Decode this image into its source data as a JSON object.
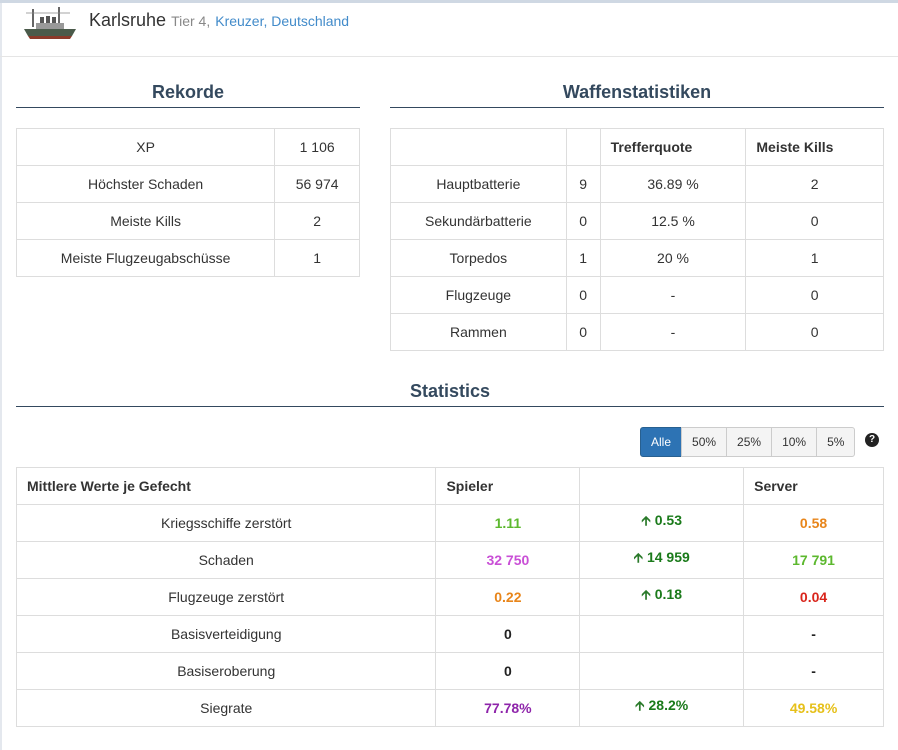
{
  "header": {
    "ship_name": "Karlsruhe",
    "tier": "Tier 4,",
    "link": "Kreuzer, Deutschland"
  },
  "rekorde": {
    "title": "Rekorde",
    "rows": [
      {
        "label": "XP",
        "value": "1 106"
      },
      {
        "label": "Höchster Schaden",
        "value": "56 974"
      },
      {
        "label": "Meiste Kills",
        "value": "2"
      },
      {
        "label": "Meiste Flugzeugabschüsse",
        "value": "1"
      }
    ]
  },
  "waffen": {
    "title": "Waffenstatistiken",
    "headers": [
      "",
      "",
      "Trefferquote",
      "Meiste Kills"
    ],
    "rows": [
      {
        "name": "Hauptbatterie",
        "count": "9",
        "quote": "36.89 %",
        "kills": "2"
      },
      {
        "name": "Sekundärbatterie",
        "count": "0",
        "quote": "12.5 %",
        "kills": "0"
      },
      {
        "name": "Torpedos",
        "count": "1",
        "quote": "20 %",
        "kills": "1"
      },
      {
        "name": "Flugzeuge",
        "count": "0",
        "quote": "-",
        "kills": "0"
      },
      {
        "name": "Rammen",
        "count": "0",
        "quote": "-",
        "kills": "0"
      }
    ]
  },
  "statistics": {
    "title": "Statistics",
    "filters": [
      "Alle",
      "50%",
      "25%",
      "10%",
      "5%"
    ],
    "active_filter": "Alle",
    "help_icon": "question-circle-icon",
    "headers": [
      "Mittlere Werte je Gefecht",
      "Spieler",
      "",
      "Server"
    ],
    "rows": [
      {
        "label": "Kriegsschiffe zerstört",
        "player": "1.11",
        "player_color": "#5cb82e",
        "diff": "0.53",
        "server": "0.58",
        "server_color": "#e8851a"
      },
      {
        "label": "Schaden",
        "player": "32 750",
        "player_color": "#c94fd6",
        "diff": "14 959",
        "server": "17 791",
        "server_color": "#5cb82e"
      },
      {
        "label": "Flugzeuge zerstört",
        "player": "0.22",
        "player_color": "#e8851a",
        "diff": "0.18",
        "server": "0.04",
        "server_color": "#d9251c"
      },
      {
        "label": "Basisverteidigung",
        "player": "0",
        "player_color": "#222222",
        "diff": "",
        "server": "-",
        "server_color": "#222222"
      },
      {
        "label": "Basiseroberung",
        "player": "0",
        "player_color": "#222222",
        "diff": "",
        "server": "-",
        "server_color": "#222222"
      },
      {
        "label": "Siegrate",
        "player": "77.78%",
        "player_color": "#8e24aa",
        "diff": "28.2%",
        "server": "49.58%",
        "server_color": "#e6c01a"
      }
    ]
  }
}
